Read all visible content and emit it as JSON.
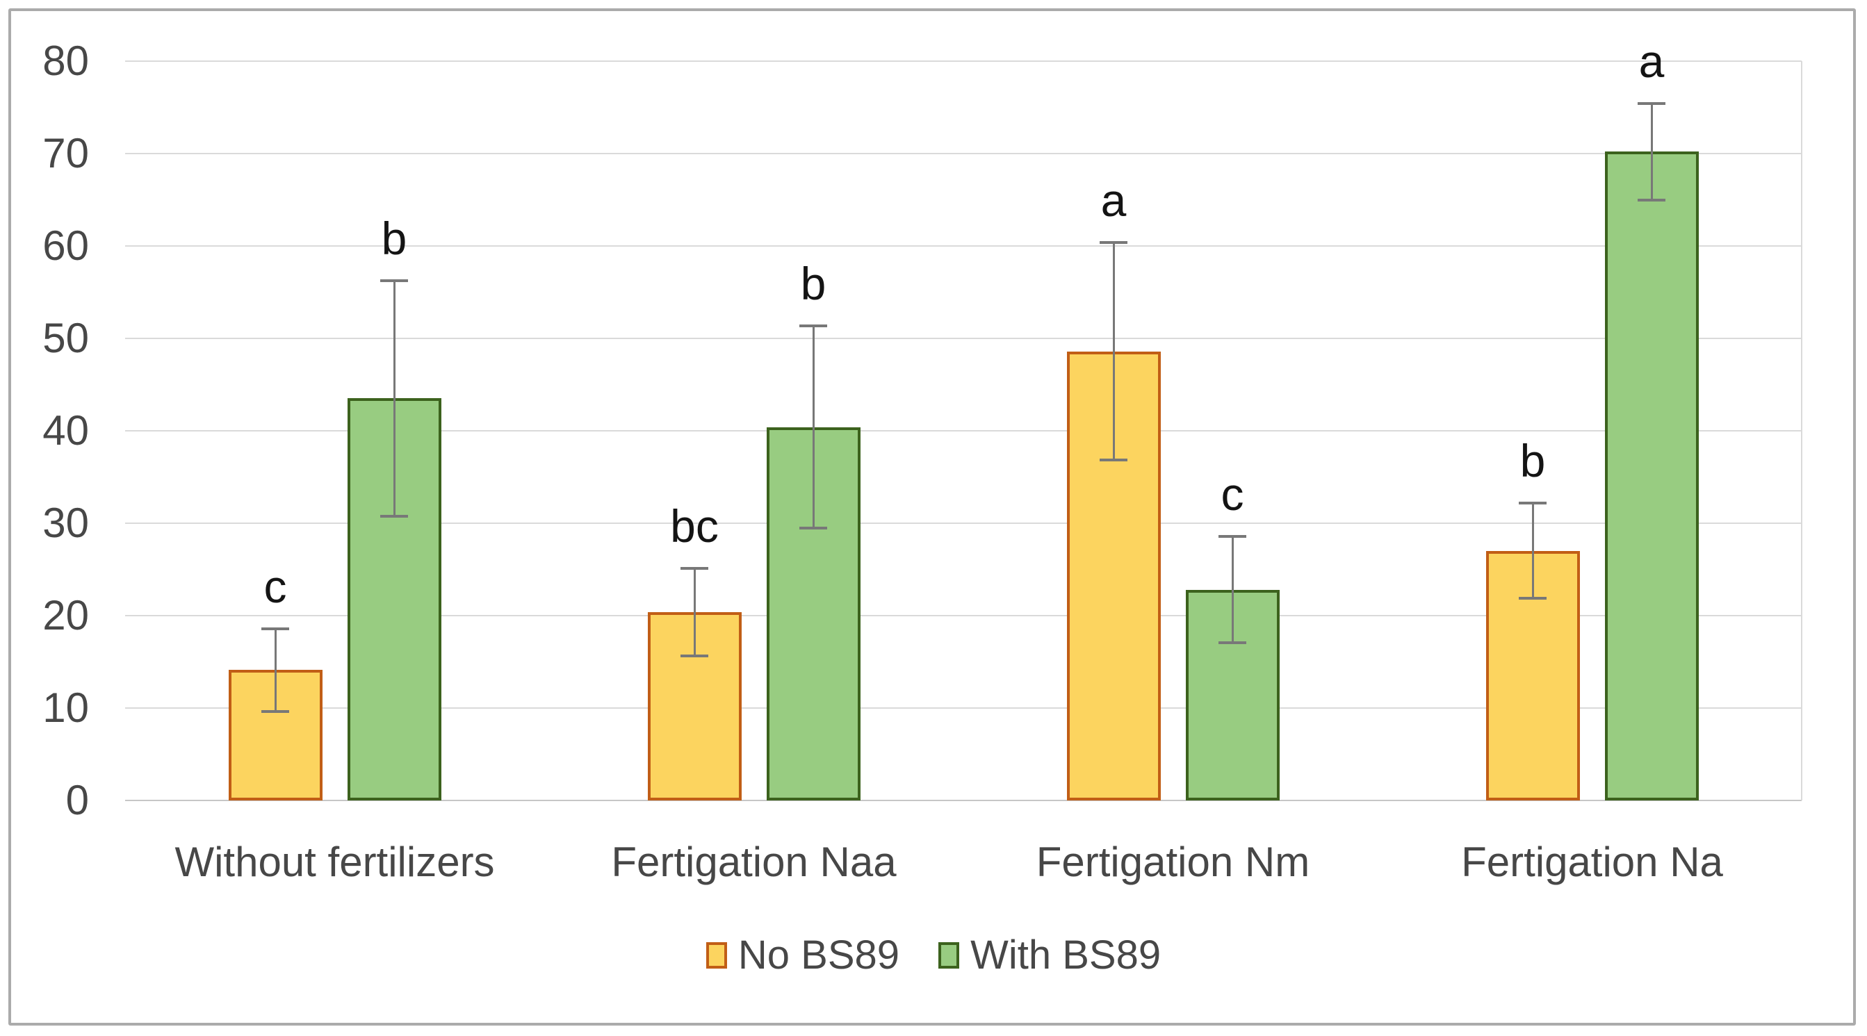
{
  "chart_data": {
    "type": "bar",
    "title": "",
    "xlabel": "",
    "ylabel": "",
    "categories": [
      "Without fertilizers",
      "Fertigation Naa",
      "Fertigation Nm",
      "Fertigation Na"
    ],
    "series": [
      {
        "name": "No BS89",
        "fill_color": "#FCD45F",
        "border_color": "#C15E16",
        "values": [
          14.1,
          20.4,
          48.6,
          27.0
        ],
        "error_bars": [
          4.6,
          4.9,
          11.9,
          5.3
        ],
        "significance_letters": [
          "c",
          "bc",
          "a",
          "b"
        ]
      },
      {
        "name": "With BS89",
        "fill_color": "#98CC81",
        "border_color": "#3C621D",
        "values": [
          43.5,
          40.4,
          22.8,
          70.2
        ],
        "error_bars": [
          12.9,
          11.1,
          5.9,
          5.4
        ],
        "significance_letters": [
          "b",
          "b",
          "c",
          "a"
        ]
      }
    ],
    "ylim": [
      0,
      80
    ],
    "yticks": [
      0,
      10,
      20,
      30,
      40,
      50,
      60,
      70,
      80
    ],
    "grid": true,
    "legend_position": "bottom",
    "error_bar_color": "#787878",
    "gridline_color": "#dadada",
    "axis_text_color": "#474747"
  }
}
